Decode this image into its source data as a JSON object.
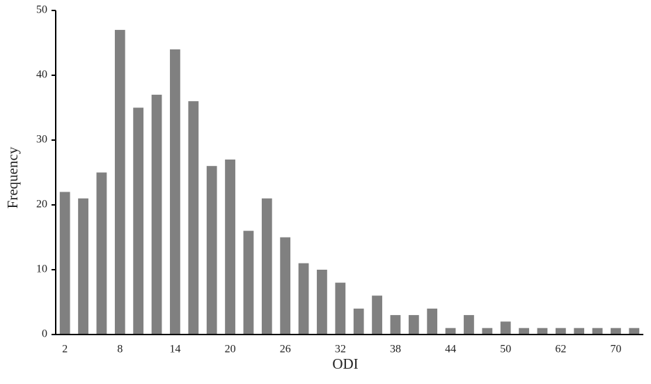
{
  "chart_data": {
    "type": "bar",
    "x_label": "ODI",
    "y_label": "Frequency",
    "categories": [
      "2",
      null,
      null,
      "8",
      null,
      null,
      "14",
      null,
      null,
      "20",
      null,
      null,
      "26",
      null,
      null,
      "32",
      null,
      null,
      "38",
      null,
      null,
      "44",
      null,
      null,
      "50",
      null,
      null,
      "62",
      null,
      null,
      "70",
      null
    ],
    "values": [
      22,
      21,
      25,
      47,
      35,
      37,
      44,
      36,
      26,
      27,
      16,
      21,
      15,
      11,
      10,
      8,
      4,
      6,
      3,
      3,
      4,
      1,
      3,
      1,
      2,
      1,
      1,
      1,
      1,
      1,
      1,
      1
    ],
    "color": "#808080",
    "ylim": [
      0,
      50
    ],
    "yticks": [
      0,
      10,
      20,
      30,
      40,
      50
    ]
  }
}
